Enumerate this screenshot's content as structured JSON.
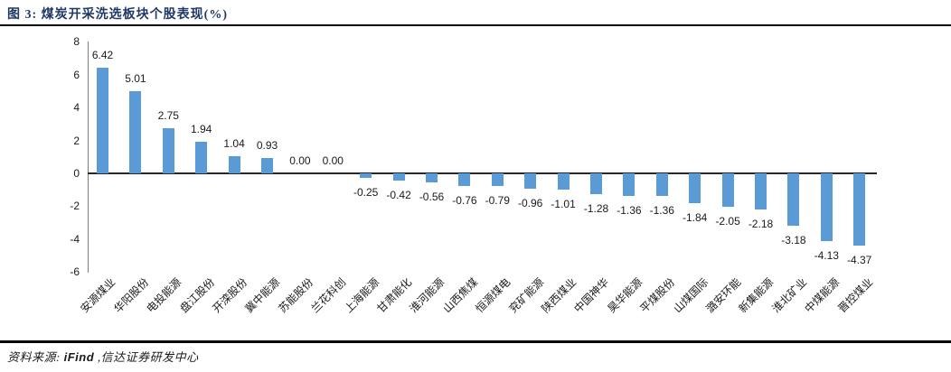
{
  "header": {
    "title": "图 3: 煤炭开采洗选板块个股表现(%)"
  },
  "chart_data": {
    "type": "bar",
    "title": "煤炭开采洗选板块个股表现(%)",
    "categories": [
      "安源煤业",
      "华阳股份",
      "电投能源",
      "盘江股份",
      "开滦股份",
      "冀中能源",
      "苏能股份",
      "兰花科创",
      "上海能源",
      "甘肃能化",
      "淮河能源",
      "山西焦煤",
      "恒源煤电",
      "兖矿能源",
      "陕西煤业",
      "中国神华",
      "昊华能源",
      "平煤股份",
      "山煤国际",
      "潞安环能",
      "新集能源",
      "淮北矿业",
      "中煤能源",
      "晋控煤业"
    ],
    "values": [
      6.42,
      5.01,
      2.75,
      1.94,
      1.04,
      0.93,
      0.0,
      0.0,
      -0.25,
      -0.42,
      -0.56,
      -0.76,
      -0.79,
      -0.96,
      -1.01,
      -1.28,
      -1.36,
      -1.36,
      -1.84,
      -2.05,
      -2.18,
      -3.18,
      -4.13,
      -4.37
    ],
    "value_labels": [
      "6.42",
      "5.01",
      "2.75",
      "1.94",
      "1.04",
      "0.93",
      "0.00",
      "0.00",
      "-0.25",
      "-0.42",
      "-0.56",
      "-0.76",
      "-0.79",
      "-0.96",
      "-1.01",
      "-1.28",
      "-1.36",
      "-1.36",
      "-1.84",
      "-2.05",
      "-2.18",
      "-3.18",
      "-4.13",
      "-4.37"
    ],
    "xlabel": "",
    "ylabel": "",
    "ylim": [
      -6,
      8
    ],
    "y_ticks": [
      8,
      6,
      4,
      2,
      0,
      -2,
      -4,
      -6
    ],
    "grid": false,
    "legend_position": "none",
    "bar_color": "#5B9BD5"
  },
  "footer": {
    "prefix": "资料来源:",
    "source": "iFind",
    "suffix": ",信达证券研发中心"
  },
  "colors": {
    "title_navy": "#1F3864",
    "bar_blue": "#5B9BD5",
    "axis_gray": "#808080",
    "zero_line": "#262626"
  }
}
